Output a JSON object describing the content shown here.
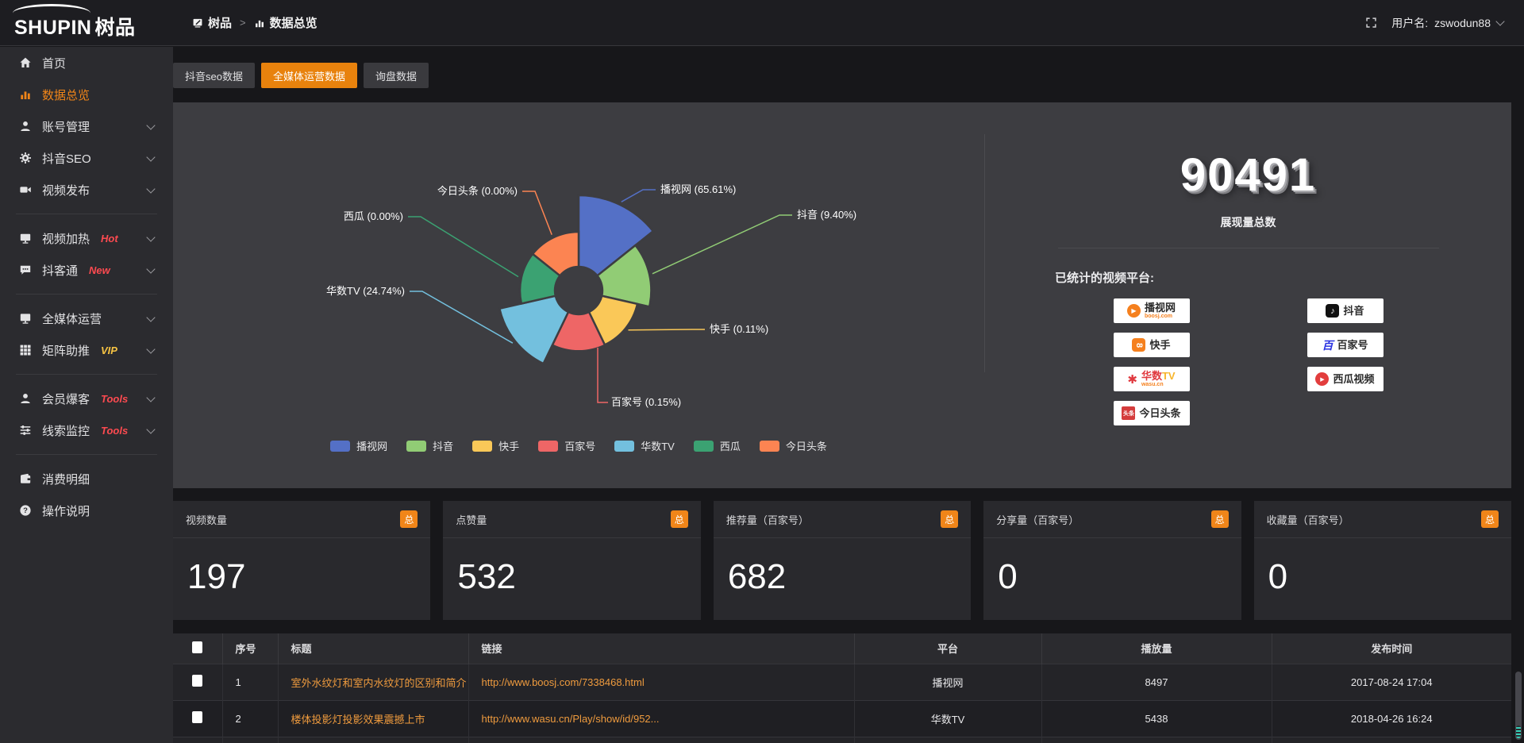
{
  "brand": {
    "name_en": "SHUPIN",
    "name_cn": "树品"
  },
  "topbar": {
    "breadcrumb": [
      {
        "label": "树品",
        "icon": "board"
      },
      {
        "label": "数据总览",
        "icon": "bar-chart"
      }
    ],
    "separator": ">",
    "username_label": "用户名:",
    "username_value": "zswodun88"
  },
  "sidebar": {
    "items": [
      {
        "id": "home",
        "label": "首页",
        "icon": "home"
      },
      {
        "id": "data-overview",
        "label": "数据总览",
        "icon": "bar-chart",
        "active": true
      },
      {
        "id": "account-manage",
        "label": "账号管理",
        "icon": "user",
        "chevron": true
      },
      {
        "id": "douyin-seo",
        "label": "抖音SEO",
        "icon": "gear",
        "chevron": true
      },
      {
        "id": "video-publish",
        "label": "视频发布",
        "icon": "video",
        "chevron": true
      },
      {
        "divider": true
      },
      {
        "id": "video-heat",
        "label": "视频加热",
        "icon": "monitor",
        "badge": "Hot",
        "badge_color": "#fd4a50",
        "chevron": true
      },
      {
        "id": "douketong",
        "label": "抖客通",
        "icon": "chat",
        "badge": "New",
        "badge_color": "#fd4a50",
        "chevron": true
      },
      {
        "divider": true
      },
      {
        "id": "media-operation",
        "label": "全媒体运营",
        "icon": "display",
        "chevron": true
      },
      {
        "id": "matrix-boost",
        "label": "矩阵助推",
        "icon": "grid",
        "badge": "VIP",
        "badge_color": "#f6c343",
        "chevron": true
      },
      {
        "divider": true
      },
      {
        "id": "member-baoke",
        "label": "会员爆客",
        "icon": "user",
        "badge": "Tools",
        "badge_color": "#fd4a50",
        "chevron": true
      },
      {
        "id": "clue-monitor",
        "label": "线索监控",
        "icon": "sliders",
        "badge": "Tools",
        "badge_color": "#fd4a50",
        "chevron": true
      },
      {
        "divider": true
      },
      {
        "id": "consumption-detail",
        "label": "消费明细",
        "icon": "wallet"
      },
      {
        "id": "operation-guide",
        "label": "操作说明",
        "icon": "help"
      }
    ]
  },
  "tabs": [
    {
      "label": "抖音seo数据",
      "active": false
    },
    {
      "label": "全媒体运营数据",
      "active": true
    },
    {
      "label": "询盘数据",
      "active": false
    }
  ],
  "chart_data": {
    "type": "pie",
    "variant": "nightingale-rose",
    "categories": [
      "播视网",
      "抖音",
      "快手",
      "百家号",
      "华数TV",
      "西瓜",
      "今日头条"
    ],
    "values_percent": [
      65.61,
      9.4,
      0.11,
      0.15,
      24.74,
      0,
      0
    ],
    "labels": [
      "播视网 (65.61%)",
      "抖音 (9.40%)",
      "快手 (0.11%)",
      "百家号 (0.15%)",
      "华数TV (24.74%)",
      "西瓜 (0.00%)",
      "今日头条 (0.00%)"
    ],
    "colors": [
      "#5470c6",
      "#91cc75",
      "#fac858",
      "#ee6666",
      "#73c0de",
      "#3ba272",
      "#fc8452"
    ],
    "legend": [
      "播视网",
      "抖音",
      "快手",
      "百家号",
      "华数TV",
      "西瓜",
      "今日头条"
    ],
    "legend_position": "bottom",
    "title": "展现量总数 90491"
  },
  "summary": {
    "total_value": "90491",
    "total_label": "展现量总数",
    "platforms_label": "已统计的视频平台:",
    "platforms": [
      {
        "name": "播视网",
        "sub": "boosj.com",
        "icon": "boosj",
        "column": 1
      },
      {
        "name": "快手",
        "icon": "kuaishou",
        "column": 1
      },
      {
        "name": "华数TV",
        "sub": "wasu.cn",
        "icon": "wasu",
        "column": 1,
        "name_parts": [
          {
            "text": "华数",
            "color": "#e0393f"
          },
          {
            "text": "TV",
            "color": "#f7b52c"
          }
        ]
      },
      {
        "name": "今日头条",
        "icon": "toutiao",
        "icon_text": "头条",
        "column": 1
      },
      {
        "name": "抖音",
        "icon": "douyin",
        "column": 2
      },
      {
        "name": "百家号",
        "icon": "baijiahao",
        "icon_text": "百",
        "column": 2
      },
      {
        "name": "西瓜视频",
        "icon": "xigua",
        "column": 2
      }
    ]
  },
  "stat_cards": [
    {
      "title": "视频数量",
      "badge": "总",
      "value": "197"
    },
    {
      "title": "点赞量",
      "badge": "总",
      "value": "532"
    },
    {
      "title": "推荐量（百家号）",
      "badge": "总",
      "value": "682"
    },
    {
      "title": "分享量（百家号）",
      "badge": "总",
      "value": "0"
    },
    {
      "title": "收藏量（百家号）",
      "badge": "总",
      "value": "0"
    }
  ],
  "table": {
    "columns": [
      "序号",
      "标题",
      "链接",
      "平台",
      "播放量",
      "发布时间"
    ],
    "rows": [
      [
        "1",
        "室外水纹灯和室内水纹灯的区别和简介",
        "http://www.boosj.com/7338468.html",
        "播视网",
        "8497",
        "2017-08-24 17:04"
      ],
      [
        "2",
        "楼体投影灯投影效果震撼上市",
        "http://www.wasu.cn/Play/show/id/952...",
        "华数TV",
        "5438",
        "2018-04-26 16:24"
      ]
    ]
  }
}
